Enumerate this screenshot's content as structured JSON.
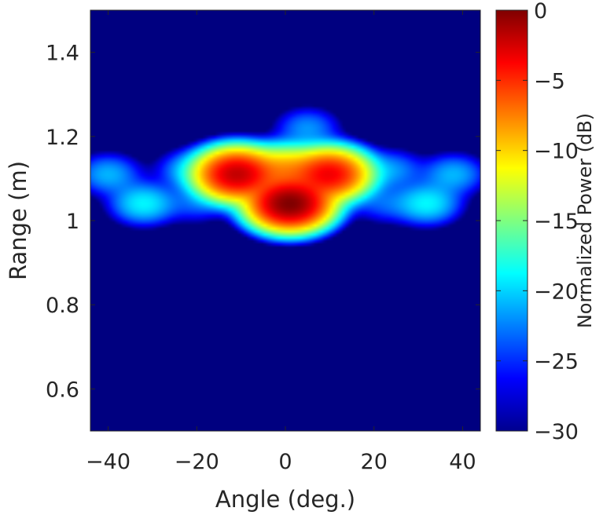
{
  "chart_data": {
    "type": "heatmap",
    "title": "",
    "xlabel": "Angle (deg.)",
    "ylabel": "Range (m)",
    "xlim": [
      -44,
      44
    ],
    "ylim": [
      0.5,
      1.5
    ],
    "x_ticks": [
      -40,
      -20,
      0,
      20,
      40
    ],
    "x_tick_labels": [
      "−40",
      "−20",
      "0",
      "20",
      "40"
    ],
    "y_ticks": [
      0.6,
      0.8,
      1.0,
      1.2,
      1.4
    ],
    "y_tick_labels": [
      "0.6",
      "0.8",
      "1",
      "1.2",
      "1.4"
    ],
    "colorbar": {
      "label": "Normalized Power (dB)",
      "colormap": "jet",
      "range": [
        -30,
        0
      ],
      "ticks": [
        0,
        -5,
        -10,
        -15,
        -20,
        -25,
        -30
      ],
      "tick_labels": [
        "0",
        "−5",
        "−10",
        "−15",
        "−20",
        "−25",
        "−30"
      ]
    },
    "peaks_dB": [
      {
        "angle": 1,
        "range": 1.04,
        "level": 0
      },
      {
        "angle": -11,
        "range": 1.11,
        "level": -2
      },
      {
        "angle": 10,
        "range": 1.11,
        "level": -3.5
      },
      {
        "angle": 0,
        "range": 1.12,
        "level": -9
      },
      {
        "angle": -32,
        "range": 1.04,
        "level": -19
      },
      {
        "angle": 32,
        "range": 1.04,
        "level": -19
      },
      {
        "angle": -40,
        "range": 1.11,
        "level": -21
      },
      {
        "angle": 38,
        "range": 1.11,
        "level": -21
      },
      {
        "angle": -22,
        "range": 1.12,
        "level": -22
      },
      {
        "angle": 24,
        "range": 1.12,
        "level": -22
      },
      {
        "angle": 5,
        "range": 1.22,
        "level": -22
      },
      {
        "angle": -20,
        "range": 1.04,
        "level": -24
      },
      {
        "angle": 22,
        "range": 1.04,
        "level": -24
      }
    ],
    "floor_dB": -30,
    "grid": false
  }
}
